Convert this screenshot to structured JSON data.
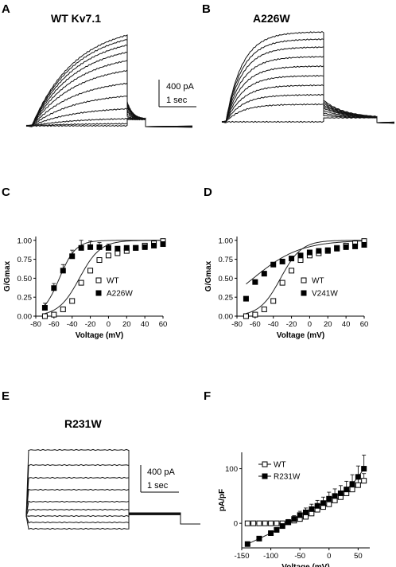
{
  "panels": {
    "A": {
      "letter": "A",
      "construct": "WT Kv7.1",
      "scale_current": "400 pA",
      "scale_time": "1 sec"
    },
    "B": {
      "letter": "B",
      "construct": "A226W"
    },
    "C": {
      "letter": "C"
    },
    "D": {
      "letter": "D"
    },
    "E": {
      "letter": "E",
      "construct": "R231W",
      "scale_current": "400 pA",
      "scale_time": "1 sec"
    },
    "F": {
      "letter": "F"
    }
  },
  "chart_data": [
    {
      "id": "C",
      "type": "scatter",
      "xlabel": "Voltage (mV)",
      "ylabel": "G/Gmax",
      "xlim": [
        -80,
        60
      ],
      "ylim": [
        0,
        1.05
      ],
      "xticks": [
        -80,
        -60,
        -40,
        -20,
        0,
        20,
        40,
        60
      ],
      "yticks": [
        0.0,
        0.25,
        0.5,
        0.75,
        1.0
      ],
      "ytick_labels": [
        "0.00",
        "0.25",
        "0.50",
        "0.75",
        "1.00"
      ],
      "legend_position": "right",
      "series": [
        {
          "name": "WT",
          "marker": "open-square",
          "x": [
            -70,
            -60,
            -50,
            -40,
            -30,
            -20,
            -10,
            0,
            10,
            20,
            30,
            40,
            50,
            60
          ],
          "y": [
            0.0,
            0.02,
            0.09,
            0.2,
            0.44,
            0.6,
            0.74,
            0.8,
            0.83,
            0.86,
            0.9,
            0.93,
            0.96,
            0.99
          ],
          "fit": {
            "v_half": -32,
            "k": 11.5
          }
        },
        {
          "name": "A226W",
          "marker": "filled-square",
          "x": [
            -70,
            -60,
            -50,
            -40,
            -30,
            -20,
            -10,
            0,
            10,
            20,
            30,
            40,
            50,
            60
          ],
          "y": [
            0.11,
            0.37,
            0.6,
            0.79,
            0.9,
            0.91,
            0.91,
            0.9,
            0.89,
            0.9,
            0.9,
            0.91,
            0.93,
            0.95
          ],
          "err": [
            0.06,
            0.06,
            0.08,
            0.08,
            0.1,
            0.08,
            0.06,
            0.05,
            0.03,
            0.03,
            0.02,
            0.02,
            0.02,
            0.02
          ],
          "fit": {
            "v_half": -54,
            "k": 9
          }
        }
      ]
    },
    {
      "id": "D",
      "type": "scatter",
      "xlabel": "Voltage (mV)",
      "ylabel": "G/Gmax",
      "xlim": [
        -80,
        60
      ],
      "ylim": [
        0,
        1.05
      ],
      "xticks": [
        -80,
        -60,
        -40,
        -20,
        0,
        20,
        40,
        60
      ],
      "yticks": [
        0.0,
        0.25,
        0.5,
        0.75,
        1.0
      ],
      "ytick_labels": [
        "0.00",
        "0.25",
        "0.50",
        "0.75",
        "1.00"
      ],
      "legend_position": "right",
      "series": [
        {
          "name": "WT",
          "marker": "open-square",
          "x": [
            -70,
            -60,
            -50,
            -40,
            -30,
            -20,
            -10,
            0,
            10,
            20,
            30,
            40,
            50,
            60
          ],
          "y": [
            0.0,
            0.02,
            0.09,
            0.2,
            0.44,
            0.6,
            0.74,
            0.8,
            0.83,
            0.86,
            0.9,
            0.93,
            0.96,
            0.99
          ],
          "fit": {
            "v_half": -32,
            "k": 11.5
          }
        },
        {
          "name": "V241W",
          "marker": "filled-square",
          "x": [
            -70,
            -60,
            -50,
            -40,
            -30,
            -20,
            -10,
            0,
            10,
            20,
            30,
            40,
            50,
            60
          ],
          "y": [
            0.23,
            0.45,
            0.56,
            0.68,
            0.72,
            0.76,
            0.8,
            0.84,
            0.86,
            0.87,
            0.89,
            0.91,
            0.92,
            0.94
          ],
          "err": [
            0.02,
            0.03,
            0.03,
            0.03,
            0.03,
            0.03,
            0.02,
            0.02,
            0.02,
            0.02,
            0.02,
            0.02,
            0.02,
            0.02
          ],
          "fit": {
            "v_half": -62,
            "k": 26
          }
        }
      ]
    },
    {
      "id": "F",
      "type": "scatter",
      "xlabel": "Voltage (mV)",
      "ylabel": "pA/pF",
      "xlim": [
        -150,
        70
      ],
      "ylim": [
        -45,
        130
      ],
      "xticks": [
        -150,
        -100,
        -50,
        0,
        50
      ],
      "yticks": [
        0,
        100
      ],
      "ytick_labels": [
        "0",
        "100"
      ],
      "legend_position": "top-left",
      "series": [
        {
          "name": "WT",
          "marker": "open-square",
          "x": [
            -140,
            -130,
            -120,
            -110,
            -100,
            -90,
            -80,
            -70,
            -60,
            -50,
            -40,
            -30,
            -20,
            -10,
            0,
            10,
            20,
            30,
            40,
            50,
            60
          ],
          "y": [
            0,
            0,
            0,
            0,
            0,
            0,
            0,
            2,
            5,
            8,
            12,
            18,
            25,
            30,
            35,
            42,
            48,
            55,
            62,
            70,
            78
          ],
          "err": [
            1,
            1,
            1,
            1,
            1,
            1,
            1,
            2,
            3,
            4,
            5,
            6,
            7,
            7,
            8,
            9,
            10,
            10,
            11,
            12,
            13
          ]
        },
        {
          "name": "R231W",
          "marker": "filled-square",
          "x": [
            -140,
            -120,
            -100,
            -90,
            -80,
            -70,
            -60,
            -50,
            -40,
            -30,
            -20,
            -10,
            0,
            10,
            20,
            30,
            40,
            50,
            60
          ],
          "y": [
            -38,
            -28,
            -18,
            -12,
            -5,
            2,
            8,
            15,
            20,
            26,
            32,
            37,
            45,
            50,
            55,
            62,
            72,
            85,
            100
          ],
          "err": [
            4,
            4,
            4,
            4,
            4,
            5,
            6,
            7,
            8,
            9,
            10,
            11,
            12,
            13,
            14,
            15,
            17,
            20,
            25
          ]
        }
      ]
    }
  ]
}
